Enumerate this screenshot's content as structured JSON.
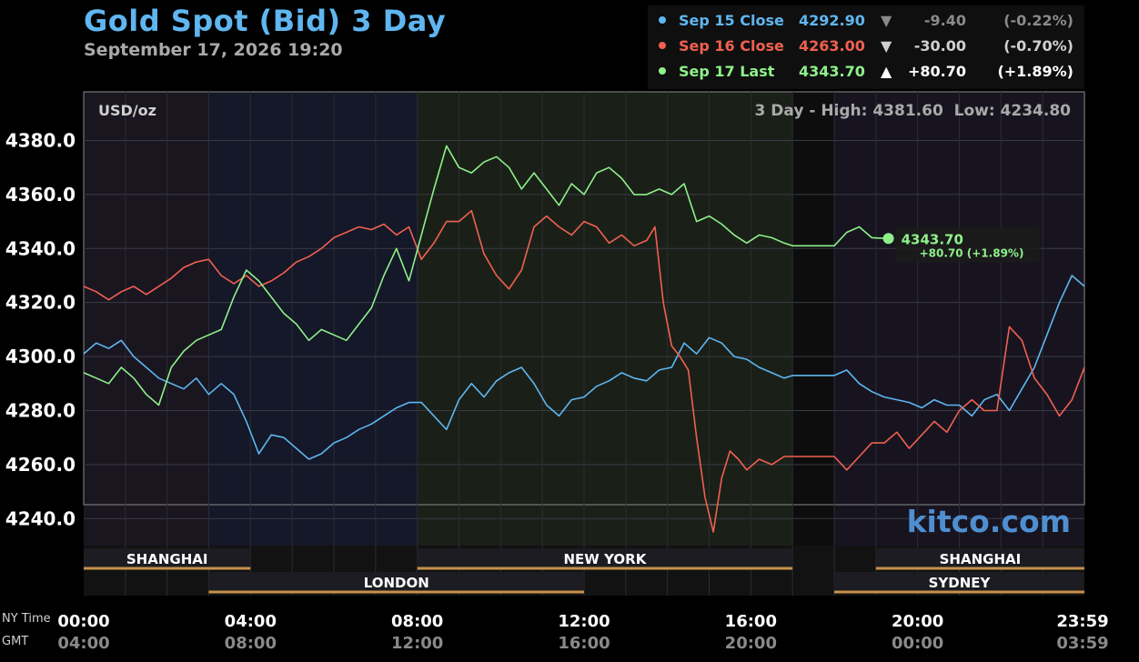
{
  "title": "Gold Spot (Bid) 3 Day",
  "subtitle": "September 17, 2026 19:20",
  "summary": [
    {
      "label": "Sep 15 Close",
      "value": "4292.90",
      "arrow": "▼",
      "change": "-9.40",
      "pct": "(-0.22%)",
      "color": "#5fb6f0",
      "arrow_color": "#8a8a8a",
      "change_color": "#8a8a8a"
    },
    {
      "label": "Sep 16 Close",
      "value": "4263.00",
      "arrow": "▼",
      "change": "-30.00",
      "pct": "(-0.70%)",
      "color": "#f06050",
      "arrow_color": "#d0d0d0",
      "change_color": "#d0d0d0"
    },
    {
      "label": "Sep 17 Last",
      "value": "4343.70",
      "arrow": "▲",
      "change": "+80.70",
      "pct": "(+1.89%)",
      "color": "#8ff08a",
      "arrow_color": "#ffffff",
      "change_color": "#ffffff"
    }
  ],
  "unit": "USD/oz",
  "high_low": "3 Day - High: 4381.60  Low: 4234.80",
  "last_label": "4343.70",
  "last_change": "+80.70 (+1.89%)",
  "watermark": "kitco.com",
  "ny_time_label": "NY Time",
  "gmt_label": "GMT",
  "sessions": {
    "top": [
      {
        "name": "SHANGHAI",
        "from": 0,
        "to": 4
      },
      {
        "name": "NEW YORK",
        "from": 8,
        "to": 17
      },
      {
        "name": "SHANGHAI",
        "from": 19,
        "to": 24
      }
    ],
    "bottom": [
      {
        "name": "LONDON",
        "from": 3,
        "to": 12
      },
      {
        "name": "SYDNEY",
        "from": 18,
        "to": 24
      }
    ]
  },
  "chart_data": {
    "type": "line",
    "title": "Gold Spot (Bid) 3 Day",
    "ylabel": "USD/oz",
    "ylim": [
      4230,
      4398
    ],
    "xlim": [
      0,
      24
    ],
    "yticks": [
      "4380.0",
      "4360.0",
      "4340.0",
      "4320.0",
      "4300.0",
      "4280.0",
      "4260.0",
      "4240.0"
    ],
    "ytick_values": [
      4380,
      4360,
      4340,
      4320,
      4300,
      4280,
      4260,
      4240
    ],
    "xticks_ny": [
      "00:00",
      "04:00",
      "08:00",
      "12:00",
      "16:00",
      "20:00",
      "23:59"
    ],
    "xticks_gmt": [
      "04:00",
      "08:00",
      "12:00",
      "16:00",
      "20:00",
      "00:00",
      "03:59"
    ],
    "xtick_hours": [
      0,
      4,
      8,
      12,
      16,
      20,
      24
    ],
    "grid": true,
    "series": [
      {
        "name": "Sep 15 Close",
        "color": "#5fb6f0",
        "x": [
          0,
          0.3,
          0.6,
          0.9,
          1.2,
          1.5,
          1.8,
          2.1,
          2.4,
          2.7,
          3.0,
          3.3,
          3.6,
          3.9,
          4.2,
          4.5,
          4.8,
          5.1,
          5.4,
          5.7,
          6.0,
          6.3,
          6.6,
          6.9,
          7.2,
          7.5,
          7.8,
          8.1,
          8.4,
          8.7,
          9.0,
          9.3,
          9.6,
          9.9,
          10.2,
          10.5,
          10.8,
          11.1,
          11.4,
          11.7,
          12.0,
          12.3,
          12.6,
          12.9,
          13.2,
          13.5,
          13.8,
          14.1,
          14.4,
          14.7,
          15.0,
          15.3,
          15.6,
          15.9,
          16.2,
          16.5,
          16.8,
          17.0,
          18.0,
          18.3,
          18.6,
          18.9,
          19.2,
          19.5,
          19.8,
          20.1,
          20.4,
          20.7,
          21.0,
          21.3,
          21.6,
          21.9,
          22.2,
          22.5,
          22.8,
          23.1,
          23.4,
          23.7,
          24.0
        ],
        "y": [
          4301,
          4305,
          4303,
          4306,
          4300,
          4296,
          4292,
          4290,
          4288,
          4292,
          4286,
          4290,
          4286,
          4276,
          4264,
          4271,
          4270,
          4266,
          4262,
          4264,
          4268,
          4270,
          4273,
          4275,
          4278,
          4281,
          4283,
          4283,
          4278,
          4273,
          4284,
          4290,
          4285,
          4291,
          4294,
          4296,
          4290,
          4282,
          4278,
          4284,
          4285,
          4289,
          4291,
          4294,
          4292,
          4291,
          4295,
          4296,
          4305,
          4301,
          4307,
          4305,
          4300,
          4299,
          4296,
          4294,
          4292,
          4293,
          4293,
          4295,
          4290,
          4287,
          4285,
          4284,
          4283,
          4281,
          4284,
          4282,
          4282,
          4278,
          4284,
          4286,
          4280,
          4288,
          4296,
          4308,
          4320,
          4330,
          4326
        ]
      },
      {
        "name": "Sep 16 Close",
        "color": "#f06050",
        "x": [
          0,
          0.3,
          0.6,
          0.9,
          1.2,
          1.5,
          1.8,
          2.1,
          2.4,
          2.7,
          3.0,
          3.3,
          3.6,
          3.9,
          4.2,
          4.5,
          4.8,
          5.1,
          5.4,
          5.7,
          6.0,
          6.3,
          6.6,
          6.9,
          7.2,
          7.5,
          7.8,
          8.1,
          8.4,
          8.7,
          9.0,
          9.3,
          9.6,
          9.9,
          10.2,
          10.5,
          10.8,
          11.1,
          11.4,
          11.7,
          12.0,
          12.3,
          12.6,
          12.9,
          13.2,
          13.5,
          13.7,
          13.9,
          14.1,
          14.3,
          14.5,
          14.7,
          14.9,
          15.1,
          15.3,
          15.5,
          15.7,
          15.9,
          16.2,
          16.5,
          16.8,
          17.0,
          18.0,
          18.3,
          18.6,
          18.9,
          19.2,
          19.5,
          19.8,
          20.1,
          20.4,
          20.7,
          21.0,
          21.3,
          21.6,
          21.9,
          22.2,
          22.5,
          22.8,
          23.1,
          23.4,
          23.7,
          24.0
        ],
        "y": [
          4326,
          4324,
          4321,
          4324,
          4326,
          4323,
          4326,
          4329,
          4333,
          4335,
          4336,
          4330,
          4327,
          4330,
          4326,
          4328,
          4331,
          4335,
          4337,
          4340,
          4344,
          4346,
          4348,
          4347,
          4349,
          4345,
          4348,
          4336,
          4342,
          4350,
          4350,
          4354,
          4338,
          4330,
          4325,
          4332,
          4348,
          4352,
          4348,
          4345,
          4350,
          4348,
          4342,
          4345,
          4341,
          4343,
          4348,
          4320,
          4304,
          4300,
          4295,
          4270,
          4248,
          4235,
          4255,
          4265,
          4262,
          4258,
          4262,
          4260,
          4263,
          4263,
          4263,
          4258,
          4263,
          4268,
          4268,
          4272,
          4266,
          4271,
          4276,
          4272,
          4280,
          4284,
          4280,
          4280,
          4311,
          4306,
          4292,
          4286,
          4278,
          4284,
          4296
        ]
      },
      {
        "name": "Sep 17 Last",
        "color": "#8ff08a",
        "x": [
          0,
          0.3,
          0.6,
          0.9,
          1.2,
          1.5,
          1.8,
          2.1,
          2.4,
          2.7,
          3.0,
          3.3,
          3.6,
          3.9,
          4.2,
          4.5,
          4.8,
          5.1,
          5.4,
          5.7,
          6.0,
          6.3,
          6.6,
          6.9,
          7.2,
          7.5,
          7.8,
          8.1,
          8.4,
          8.7,
          9.0,
          9.3,
          9.6,
          9.9,
          10.2,
          10.5,
          10.8,
          11.1,
          11.4,
          11.7,
          12.0,
          12.3,
          12.6,
          12.9,
          13.2,
          13.5,
          13.8,
          14.1,
          14.4,
          14.7,
          15.0,
          15.3,
          15.6,
          15.9,
          16.2,
          16.5,
          16.8,
          17.0,
          18.0,
          18.3,
          18.6,
          18.9,
          19.3
        ],
        "y": [
          4294,
          4292,
          4290,
          4296,
          4292,
          4286,
          4282,
          4296,
          4302,
          4306,
          4308,
          4310,
          4322,
          4332,
          4328,
          4322,
          4316,
          4312,
          4306,
          4310,
          4308,
          4306,
          4312,
          4318,
          4330,
          4340,
          4328,
          4345,
          4362,
          4378,
          4370,
          4368,
          4372,
          4374,
          4370,
          4362,
          4368,
          4362,
          4356,
          4364,
          4360,
          4368,
          4370,
          4366,
          4360,
          4360,
          4362,
          4360,
          4364,
          4350,
          4352,
          4349,
          4345,
          4342,
          4345,
          4344,
          4342,
          4341,
          4341,
          4346,
          4348,
          4344,
          4343.7
        ]
      }
    ]
  }
}
